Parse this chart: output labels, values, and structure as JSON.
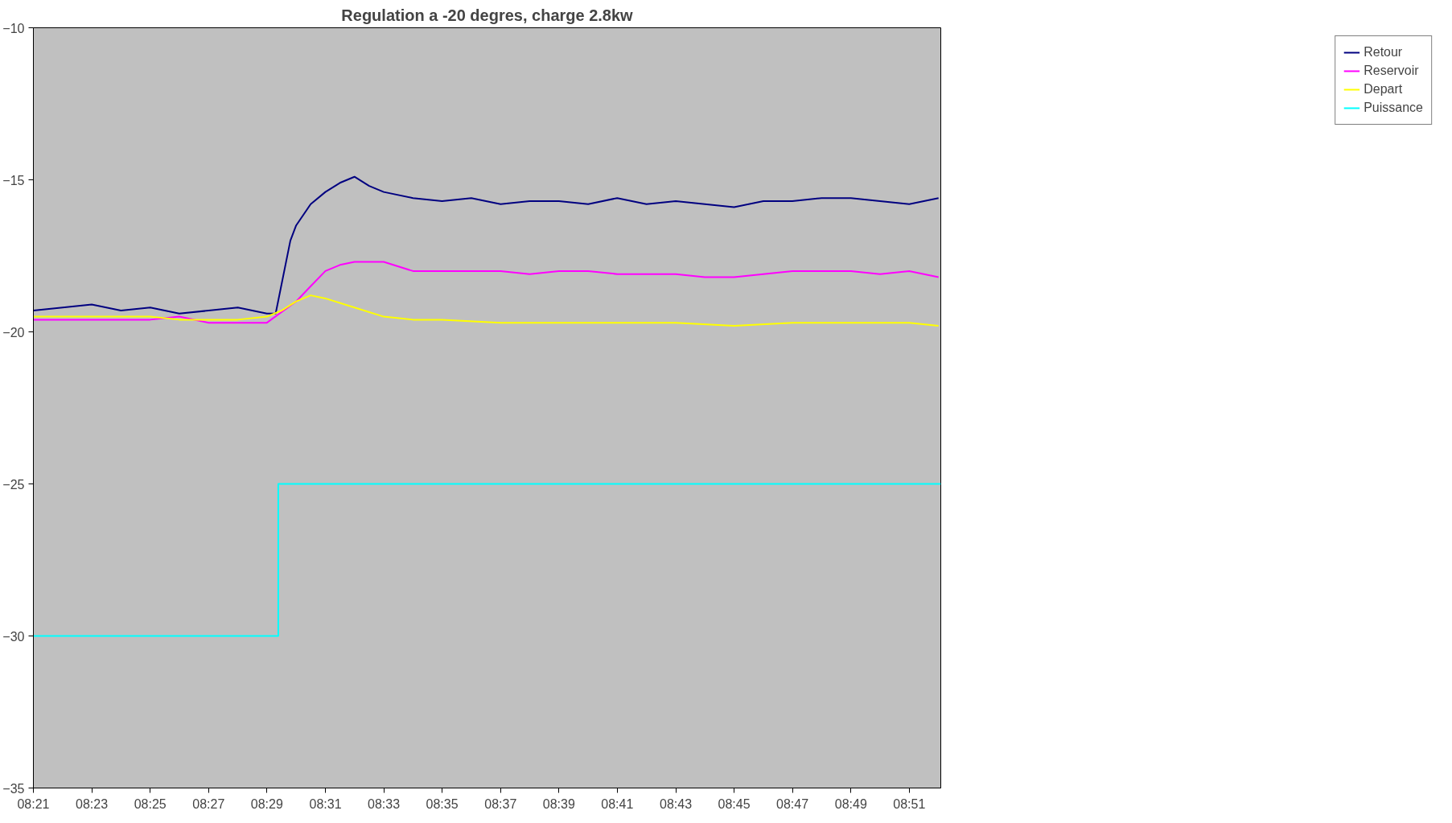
{
  "chart_data": {
    "type": "line",
    "title": "Regulation a -20 degres, charge 2.8kw",
    "xlim": [
      8.35,
      8.868
    ],
    "ylim": [
      -35,
      -10
    ],
    "yticks": [
      -35,
      -30,
      -25,
      -20,
      -15,
      -10
    ],
    "xticks": [
      {
        "value": 8.35,
        "label": "08:21"
      },
      {
        "value": 8.3833,
        "label": "08:23"
      },
      {
        "value": 8.4167,
        "label": "08:25"
      },
      {
        "value": 8.45,
        "label": "08:27"
      },
      {
        "value": 8.4833,
        "label": "08:29"
      },
      {
        "value": 8.5167,
        "label": "08:31"
      },
      {
        "value": 8.55,
        "label": "08:33"
      },
      {
        "value": 8.5833,
        "label": "08:35"
      },
      {
        "value": 8.6167,
        "label": "08:37"
      },
      {
        "value": 8.65,
        "label": "08:39"
      },
      {
        "value": 8.6833,
        "label": "08:41"
      },
      {
        "value": 8.7167,
        "label": "08:43"
      },
      {
        "value": 8.75,
        "label": "08:45"
      },
      {
        "value": 8.7833,
        "label": "08:47"
      },
      {
        "value": 8.8167,
        "label": "08:49"
      },
      {
        "value": 8.85,
        "label": "08:51"
      }
    ],
    "grid": false,
    "legend": "right",
    "line_style": "solid",
    "marker": "none",
    "series": [
      {
        "name": "Retour",
        "color": "#000080",
        "x": [
          8.35,
          8.3667,
          8.3833,
          8.4,
          8.4167,
          8.4333,
          8.45,
          8.4667,
          8.4833,
          8.4883,
          8.4967,
          8.5,
          8.5083,
          8.5167,
          8.525,
          8.5333,
          8.5417,
          8.55,
          8.5667,
          8.5833,
          8.6,
          8.6167,
          8.6333,
          8.65,
          8.6667,
          8.6833,
          8.7,
          8.7167,
          8.7333,
          8.75,
          8.7667,
          8.7833,
          8.8,
          8.8167,
          8.8333,
          8.85,
          8.8667
        ],
        "values": [
          -19.3,
          -19.2,
          -19.1,
          -19.3,
          -19.2,
          -19.4,
          -19.3,
          -19.2,
          -19.4,
          -19.4,
          -17.0,
          -16.5,
          -15.8,
          -15.4,
          -15.1,
          -14.9,
          -15.2,
          -15.4,
          -15.6,
          -15.7,
          -15.6,
          -15.8,
          -15.7,
          -15.7,
          -15.8,
          -15.6,
          -15.8,
          -15.7,
          -15.8,
          -15.9,
          -15.7,
          -15.7,
          -15.6,
          -15.6,
          -15.7,
          -15.8,
          -15.6
        ]
      },
      {
        "name": "Reservoir",
        "color": "#ff00ff",
        "x": [
          8.35,
          8.3667,
          8.3833,
          8.4,
          8.4167,
          8.4333,
          8.45,
          8.4667,
          8.4833,
          8.5,
          8.5083,
          8.5167,
          8.525,
          8.5333,
          8.55,
          8.5667,
          8.5833,
          8.6,
          8.6167,
          8.6333,
          8.65,
          8.6667,
          8.6833,
          8.7,
          8.7167,
          8.7333,
          8.75,
          8.7667,
          8.7833,
          8.8,
          8.8167,
          8.8333,
          8.85,
          8.8667
        ],
        "values": [
          -19.6,
          -19.6,
          -19.6,
          -19.6,
          -19.6,
          -19.5,
          -19.7,
          -19.7,
          -19.7,
          -19.0,
          -18.5,
          -18.0,
          -17.8,
          -17.7,
          -17.7,
          -18.0,
          -18.0,
          -18.0,
          -18.0,
          -18.1,
          -18.0,
          -18.0,
          -18.1,
          -18.1,
          -18.1,
          -18.2,
          -18.2,
          -18.1,
          -18.0,
          -18.0,
          -18.0,
          -18.1,
          -18.0,
          -18.2
        ]
      },
      {
        "name": "Depart",
        "color": "#ffff00",
        "x": [
          8.35,
          8.3667,
          8.3833,
          8.4,
          8.4167,
          8.4333,
          8.45,
          8.4667,
          8.4833,
          8.4917,
          8.5,
          8.5083,
          8.5167,
          8.5333,
          8.55,
          8.5667,
          8.5833,
          8.6167,
          8.65,
          8.6833,
          8.7167,
          8.75,
          8.7833,
          8.8167,
          8.85,
          8.8667
        ],
        "values": [
          -19.5,
          -19.5,
          -19.5,
          -19.5,
          -19.5,
          -19.6,
          -19.6,
          -19.6,
          -19.5,
          -19.3,
          -19.0,
          -18.8,
          -18.9,
          -19.2,
          -19.5,
          -19.6,
          -19.6,
          -19.7,
          -19.7,
          -19.7,
          -19.7,
          -19.8,
          -19.7,
          -19.7,
          -19.7,
          -19.8
        ]
      },
      {
        "name": "Puissance",
        "color": "#00ffff",
        "type": "step",
        "x": [
          8.35,
          8.4898,
          8.868
        ],
        "values": [
          -30,
          -25,
          -25
        ]
      }
    ]
  }
}
